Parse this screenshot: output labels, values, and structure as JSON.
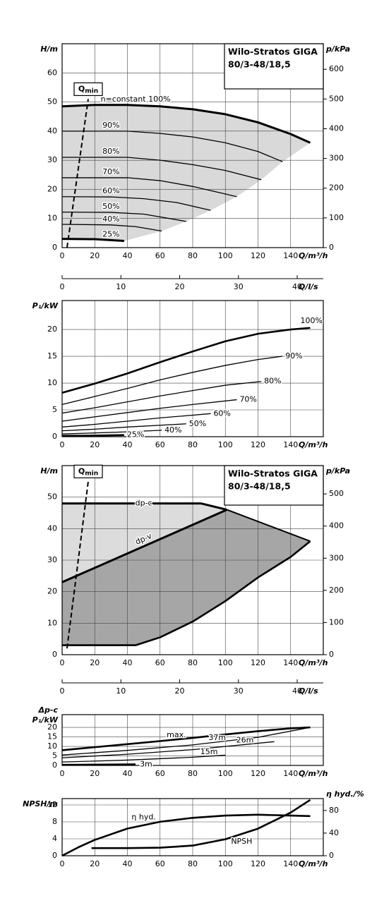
{
  "chart_data": [
    {
      "type": "line",
      "title": [
        "Wilo-Stratos GIGA",
        "80/3-48/18,5"
      ],
      "ylabel": [
        "H/m"
      ],
      "y2label": "p/kPa",
      "xlabel": "Q/m³/h",
      "x2label": "Q/l/s",
      "xlim": [
        0,
        160
      ],
      "xticks": [
        0,
        20,
        40,
        60,
        80,
        100,
        120,
        140
      ],
      "ylim": [
        0,
        70
      ],
      "yticks": [
        0,
        10,
        20,
        30,
        40,
        50,
        60
      ],
      "y2lim": [
        0,
        686
      ],
      "y2ticks": [
        0,
        100,
        200,
        300,
        400,
        500,
        600
      ],
      "x2lim": [
        0,
        44.44
      ],
      "x2ticks": [
        0,
        10,
        20,
        30,
        40
      ],
      "grid": true,
      "region_colors": [
        "#d9d9d9"
      ],
      "color": "#000000",
      "qmin": {
        "label": "Q",
        "sub": "min",
        "x": [
          3,
          16
        ],
        "y": [
          0,
          51
        ]
      },
      "series": [
        {
          "name": "n=constant 100%",
          "linewidth": 3,
          "x": [
            0,
            20,
            40,
            60,
            80,
            100,
            120,
            140,
            152
          ],
          "y": [
            48.5,
            49,
            49,
            48.5,
            47.5,
            45.8,
            43,
            39,
            36
          ]
        },
        {
          "name": "90%",
          "linewidth": 1.3,
          "x": [
            0,
            40,
            60,
            80,
            100,
            120,
            135
          ],
          "y": [
            40,
            40,
            39.2,
            38,
            36,
            33,
            29.5
          ]
        },
        {
          "name": "80%",
          "linewidth": 1.3,
          "x": [
            0,
            40,
            60,
            80,
            100,
            122
          ],
          "y": [
            31,
            31,
            30,
            28.5,
            26.5,
            23.3
          ]
        },
        {
          "name": "70%",
          "linewidth": 1.3,
          "x": [
            0,
            40,
            60,
            80,
            107
          ],
          "y": [
            24,
            24,
            23,
            21,
            17.5
          ]
        },
        {
          "name": "60%",
          "linewidth": 1.3,
          "x": [
            0,
            30,
            50,
            70,
            91
          ],
          "y": [
            17.5,
            17.4,
            16.8,
            15.5,
            12.8
          ]
        },
        {
          "name": "50%",
          "linewidth": 1.3,
          "x": [
            0,
            30,
            50,
            76
          ],
          "y": [
            12.2,
            12.1,
            11.5,
            9
          ]
        },
        {
          "name": "40%",
          "linewidth": 1.3,
          "x": [
            0,
            30,
            45,
            61
          ],
          "y": [
            8,
            7.8,
            7.2,
            5.7
          ]
        },
        {
          "name": "25%",
          "linewidth": 3,
          "x": [
            0,
            20,
            38
          ],
          "y": [
            3,
            2.9,
            2.3
          ]
        }
      ]
    },
    {
      "type": "line",
      "ylabel": [
        "P₁/kW"
      ],
      "xlabel": "Q/m³/h",
      "xlim": [
        0,
        160
      ],
      "xticks": [
        0,
        20,
        40,
        60,
        80,
        100,
        120,
        140
      ],
      "ylim": [
        0,
        25.4
      ],
      "yticks": [
        0,
        5,
        10,
        15,
        20
      ],
      "grid": true,
      "color": "#000000",
      "series": [
        {
          "name": "100%",
          "linewidth": 2.6,
          "x": [
            0,
            20,
            40,
            60,
            80,
            100,
            120,
            140,
            152
          ],
          "y": [
            8.2,
            9.9,
            11.8,
            13.9,
            15.9,
            17.8,
            19.2,
            20,
            20.3
          ]
        },
        {
          "name": "90%",
          "linewidth": 1.3,
          "x": [
            0,
            20,
            40,
            60,
            80,
            100,
            120,
            135
          ],
          "y": [
            6,
            7.5,
            9,
            10.6,
            12,
            13.3,
            14.4,
            15
          ]
        },
        {
          "name": "80%",
          "linewidth": 1.3,
          "x": [
            0,
            20,
            40,
            60,
            80,
            100,
            122
          ],
          "y": [
            4.4,
            5.4,
            6.5,
            7.6,
            8.6,
            9.6,
            10.3
          ]
        },
        {
          "name": "70%",
          "linewidth": 1.3,
          "x": [
            0,
            20,
            40,
            60,
            80,
            107
          ],
          "y": [
            2.9,
            3.7,
            4.5,
            5.3,
            6,
            6.9
          ]
        },
        {
          "name": "60%",
          "linewidth": 1.3,
          "x": [
            0,
            20,
            40,
            60,
            91
          ],
          "y": [
            1.8,
            2.3,
            2.9,
            3.5,
            4.3
          ]
        },
        {
          "name": "50%",
          "linewidth": 1.3,
          "x": [
            0,
            20,
            40,
            76
          ],
          "y": [
            1.1,
            1.4,
            1.8,
            2.4
          ]
        },
        {
          "name": "40%",
          "linewidth": 1.3,
          "x": [
            0,
            20,
            40,
            61
          ],
          "y": [
            0.5,
            0.7,
            0.9,
            1.2
          ]
        },
        {
          "name": "25%",
          "linewidth": 2.6,
          "x": [
            0,
            20,
            38
          ],
          "y": [
            0.15,
            0.2,
            0.3
          ]
        }
      ]
    },
    {
      "type": "line",
      "title": [
        "Wilo-Stratos GIGA",
        "80/3-48/18,5"
      ],
      "ylabel": [
        "H/m"
      ],
      "y2label": "p/kPa",
      "xlabel": "Q/m³/h",
      "x2label": "Q/l/s",
      "xlim": [
        0,
        160
      ],
      "xticks": [
        0,
        20,
        40,
        60,
        80,
        100,
        120,
        140
      ],
      "ylim": [
        0,
        60
      ],
      "yticks": [
        0,
        10,
        20,
        30,
        40,
        50
      ],
      "y2lim": [
        0,
        588
      ],
      "y2ticks": [
        0,
        100,
        200,
        300,
        400,
        500
      ],
      "x2lim": [
        0,
        44.44
      ],
      "x2ticks": [
        0,
        10,
        20,
        30,
        40
      ],
      "grid": true,
      "region_colors": [
        "#dcdcdc",
        "#a6a6a6"
      ],
      "color": "#000000",
      "qmin": {
        "label": "Q",
        "sub": "min",
        "x": [
          3,
          16
        ],
        "y": [
          2,
          55
        ]
      },
      "series": [
        {
          "name": "dp-c",
          "linewidth": 3,
          "x": [
            0,
            85,
            101
          ],
          "y": [
            48,
            48,
            46
          ]
        },
        {
          "name": "dp-v",
          "linewidth": 3,
          "x": [
            0,
            101
          ],
          "y": [
            23,
            46
          ]
        },
        {
          "linewidth": 2,
          "x": [
            101,
            152
          ],
          "y": [
            46,
            36
          ]
        },
        {
          "linewidth": 2.6,
          "x": [
            0,
            45,
            60,
            80,
            100,
            120,
            140,
            152
          ],
          "y": [
            3,
            3,
            5.5,
            10.5,
            17,
            24.5,
            31,
            36
          ]
        }
      ]
    },
    {
      "type": "line",
      "ylabel": [
        "Δp-c",
        "P₁/kW"
      ],
      "xlabel": "Q/m³/h",
      "xlim": [
        0,
        160
      ],
      "xticks": [
        0,
        20,
        40,
        60,
        80,
        100,
        120,
        140
      ],
      "ylim": [
        0,
        26.7
      ],
      "yticks": [
        0,
        5,
        10,
        15,
        20
      ],
      "grid": true,
      "color": "#000000",
      "series": [
        {
          "name": "max.",
          "linewidth": 2.6,
          "x": [
            0,
            20,
            40,
            60,
            80,
            100,
            120,
            140,
            152
          ],
          "y": [
            8,
            9.6,
            11.2,
            12.8,
            14.5,
            16.3,
            18,
            19.5,
            20
          ]
        },
        {
          "name": "37m",
          "linewidth": 1.3,
          "x": [
            0,
            40,
            80,
            120,
            152
          ],
          "y": [
            5.5,
            7.9,
            10.8,
            14.8,
            20
          ]
        },
        {
          "name": "26m",
          "linewidth": 1.3,
          "x": [
            0,
            40,
            80,
            130
          ],
          "y": [
            4,
            5.9,
            8.3,
            12.5
          ]
        },
        {
          "name": "15m",
          "linewidth": 1.3,
          "x": [
            0,
            40,
            80,
            100
          ],
          "y": [
            1.8,
            2.8,
            4.3,
            5.4
          ]
        },
        {
          "name": "3m",
          "linewidth": 2.6,
          "x": [
            0,
            20,
            45
          ],
          "y": [
            0.3,
            0.4,
            0.6
          ]
        }
      ]
    },
    {
      "type": "line",
      "ylabel": [
        "NPSH/m"
      ],
      "y2label": "η hyd./%",
      "xlabel": "Q/m³/h",
      "xlim": [
        0,
        160
      ],
      "xticks": [
        0,
        20,
        40,
        60,
        80,
        100,
        120,
        140
      ],
      "ylim": [
        0,
        13.5
      ],
      "yticks": [
        0,
        4,
        8,
        12
      ],
      "y2lim": [
        0,
        101
      ],
      "y2ticks": [
        0,
        40,
        80
      ],
      "grid": true,
      "color": "#000000",
      "series": [
        {
          "name": "η hyd.",
          "axis": "y2",
          "linewidth": 2.6,
          "x": [
            0,
            10,
            20,
            40,
            60,
            80,
            100,
            120,
            140,
            152
          ],
          "y": [
            0,
            15,
            28,
            48,
            60,
            67,
            71,
            72.5,
            71,
            70
          ]
        },
        {
          "name": "NPSH",
          "linewidth": 2.6,
          "x": [
            18,
            40,
            60,
            80,
            100,
            120,
            140,
            152
          ],
          "y": [
            1.8,
            1.8,
            1.9,
            2.4,
            3.9,
            6.4,
            10.2,
            13.2
          ]
        }
      ]
    }
  ]
}
